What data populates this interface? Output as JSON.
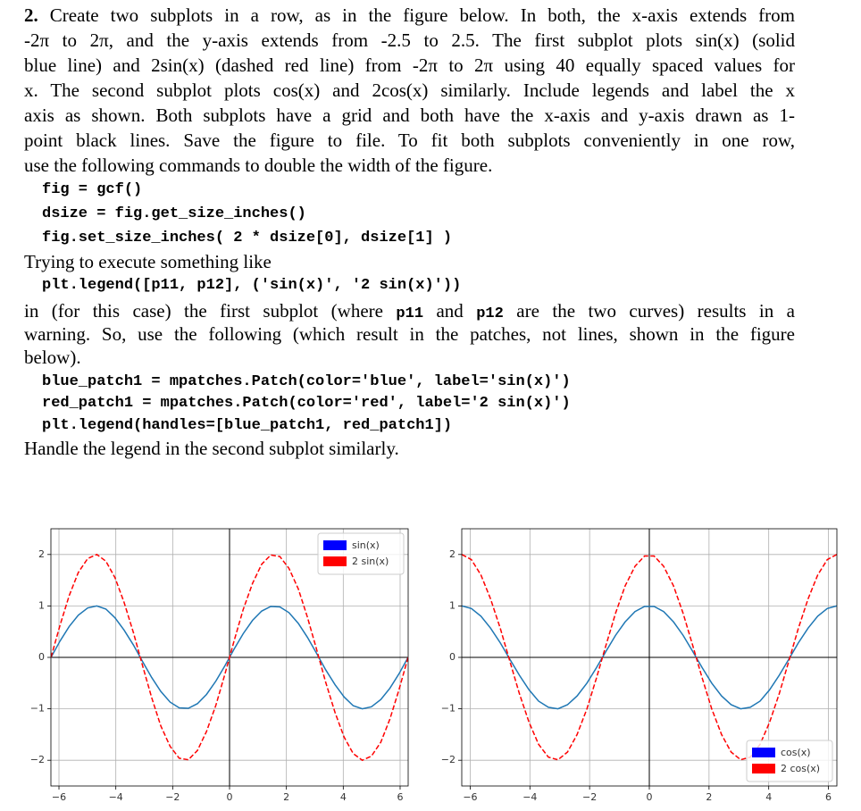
{
  "document": {
    "problem_number": "2.",
    "paragraph1": [
      " Create two subplots in a row, as in the figure below.  In both, the x-axis extends from",
      "-2π to 2π, and the y-axis extends from -2.5 to 2.5.  The first subplot plots sin(x) (solid",
      "blue line) and 2sin(x) (dashed red line) from -2π to 2π using 40 equally spaced values for",
      "x.  The second subplot plots cos(x) and 2cos(x) similarly.  Include legends and label the x",
      "axis as shown.  Both subplots have a grid and both have the x-axis and y-axis drawn as 1-",
      "point black lines.  Save the figure to file.  To fit both subplots conveniently in one row,",
      "use the following commands to double the width of the figure."
    ],
    "code1": [
      "fig = gcf()",
      "dsize = fig.get_size_inches()",
      "fig.set_size_inches( 2 * dsize[0], dsize[1] )"
    ],
    "text2": "Trying to execute something like",
    "code2": "plt.legend([p11, p12], ('sin(x)', '2 sin(x)'))",
    "paragraph3_first": [
      "in (for this case) the first subplot (where ",
      "p11",
      " and ",
      "p12",
      " are the two curves) results in a"
    ],
    "paragraph3": [
      "warning.  So, use the following (which result in the patches, not lines, shown in the figure",
      "below)."
    ],
    "code3": [
      "blue_patch1 = mpatches.Patch(color='blue', label='sin(x)')",
      "red_patch1 = mpatches.Patch(color='red', label='2 sin(x)')",
      "plt.legend(handles=[blue_patch1, red_patch1])"
    ],
    "closing": "Handle the legend in the second subplot similarly."
  },
  "chart_data": [
    {
      "type": "line",
      "x": [
        -6.28,
        -5.96,
        -5.64,
        -5.32,
        -4.99,
        -4.67,
        -4.35,
        -4.03,
        -3.71,
        -3.38,
        -3.06,
        -2.74,
        -2.42,
        -2.09,
        -1.77,
        -1.45,
        -1.13,
        -0.81,
        -0.48,
        -0.16,
        0.16,
        0.48,
        0.81,
        1.13,
        1.45,
        1.77,
        2.09,
        2.42,
        2.74,
        3.06,
        3.38,
        3.71,
        4.03,
        4.35,
        4.67,
        4.99,
        5.32,
        5.64,
        5.96,
        6.28
      ],
      "series": [
        {
          "name": "sin(x)",
          "color": "#1f77b4",
          "patch_color": "blue",
          "linestyle": "solid",
          "values": [
            0,
            0.32,
            0.6,
            0.82,
            0.96,
            1.0,
            0.94,
            0.77,
            0.53,
            0.24,
            -0.08,
            -0.39,
            -0.66,
            -0.87,
            -0.98,
            -0.99,
            -0.9,
            -0.72,
            -0.46,
            -0.16,
            0.16,
            0.46,
            0.72,
            0.9,
            0.99,
            0.98,
            0.87,
            0.66,
            0.39,
            0.08,
            -0.24,
            -0.53,
            -0.77,
            -0.94,
            -1.0,
            -0.96,
            -0.82,
            -0.6,
            -0.32,
            0
          ]
        },
        {
          "name": "2 sin(x)",
          "color": "red",
          "patch_color": "red",
          "linestyle": "dashed",
          "values": [
            0,
            0.63,
            1.2,
            1.65,
            1.92,
            2.0,
            1.87,
            1.55,
            1.07,
            0.48,
            -0.16,
            -0.78,
            -1.33,
            -1.73,
            -1.96,
            -1.99,
            -1.81,
            -1.44,
            -0.93,
            -0.32,
            0.32,
            0.93,
            1.44,
            1.81,
            1.99,
            1.96,
            1.73,
            1.33,
            0.78,
            0.16,
            -0.48,
            -1.07,
            -1.55,
            -1.87,
            -2.0,
            -1.92,
            -1.65,
            -1.2,
            -0.63,
            0
          ]
        }
      ],
      "xlim": [
        -6.283185,
        6.283185
      ],
      "ylim": [
        -2.5,
        2.5
      ],
      "xticks": [
        {
          "value": -6,
          "label": "−6"
        },
        {
          "value": -4,
          "label": "−4"
        },
        {
          "value": -2,
          "label": "−2"
        },
        0,
        2,
        4,
        6
      ],
      "yticks": [
        {
          "value": -2,
          "label": "−2"
        },
        {
          "value": -1,
          "label": "−1"
        },
        0,
        1,
        2
      ],
      "grid": true,
      "zero_lines": true,
      "legend": "upper right"
    },
    {
      "type": "line",
      "x": [
        -6.28,
        -5.96,
        -5.64,
        -5.32,
        -4.99,
        -4.67,
        -4.35,
        -4.03,
        -3.71,
        -3.38,
        -3.06,
        -2.74,
        -2.42,
        -2.09,
        -1.77,
        -1.45,
        -1.13,
        -0.81,
        -0.48,
        -0.16,
        0.16,
        0.48,
        0.81,
        1.13,
        1.45,
        1.77,
        2.09,
        2.42,
        2.74,
        3.06,
        3.38,
        3.71,
        4.03,
        4.35,
        4.67,
        4.99,
        5.32,
        5.64,
        5.96,
        6.28
      ],
      "series": [
        {
          "name": "cos(x)",
          "color": "#1f77b4",
          "patch_color": "blue",
          "linestyle": "solid",
          "values": [
            1,
            0.95,
            0.8,
            0.57,
            0.28,
            -0.04,
            -0.35,
            -0.63,
            -0.85,
            -0.97,
            -1.0,
            -0.92,
            -0.75,
            -0.5,
            -0.2,
            0.12,
            0.43,
            0.69,
            0.89,
            0.99,
            0.99,
            0.89,
            0.69,
            0.43,
            0.12,
            -0.2,
            -0.5,
            -0.75,
            -0.92,
            -1.0,
            -0.97,
            -0.85,
            -0.63,
            -0.35,
            -0.04,
            0.28,
            0.57,
            0.8,
            0.95,
            1
          ]
        },
        {
          "name": "2 cos(x)",
          "color": "red",
          "patch_color": "red",
          "linestyle": "dashed",
          "values": [
            2,
            1.9,
            1.6,
            1.14,
            0.56,
            -0.08,
            -0.71,
            -1.26,
            -1.69,
            -1.94,
            -1.99,
            -1.84,
            -1.5,
            -1.0,
            -0.4,
            0.24,
            0.86,
            1.39,
            1.77,
            1.97,
            1.97,
            1.77,
            1.39,
            0.86,
            0.24,
            -0.4,
            -1.0,
            -1.5,
            -1.84,
            -1.99,
            -1.94,
            -1.69,
            -1.26,
            -0.71,
            -0.08,
            0.56,
            1.14,
            1.6,
            1.9,
            2
          ]
        }
      ],
      "xlim": [
        -6.283185,
        6.283185
      ],
      "ylim": [
        -2.5,
        2.5
      ],
      "xticks": [
        {
          "value": -6,
          "label": "−6"
        },
        {
          "value": -4,
          "label": "−4"
        },
        {
          "value": -2,
          "label": "−2"
        },
        0,
        2,
        4,
        6
      ],
      "yticks": [
        {
          "value": -2,
          "label": "−2"
        },
        {
          "value": -1,
          "label": "−1"
        },
        0,
        1,
        2
      ],
      "grid": true,
      "zero_lines": true,
      "legend": "lower right"
    }
  ]
}
